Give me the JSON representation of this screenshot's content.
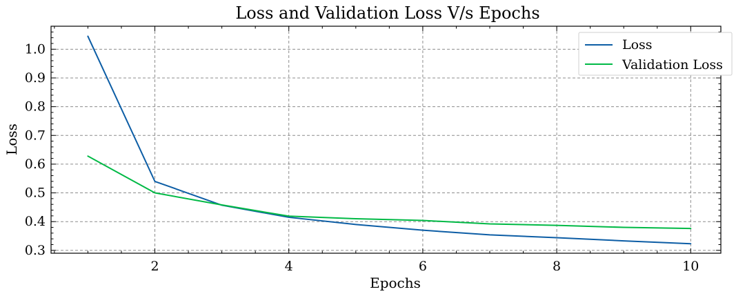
{
  "chart_data": {
    "type": "line",
    "title": "Loss and Validation Loss V/s Epochs",
    "xlabel": "Epochs",
    "ylabel": "Loss",
    "xlim": [
      0.45,
      10.45
    ],
    "ylim": [
      0.29,
      1.08
    ],
    "xticks": [
      2,
      4,
      6,
      8,
      10
    ],
    "yticks": [
      0.3,
      0.4,
      0.5,
      0.6,
      0.7,
      0.8,
      0.9,
      1.0
    ],
    "ytick_labels": [
      "0.3",
      "0.4",
      "0.5",
      "0.6",
      "0.7",
      "0.8",
      "0.9",
      "1.0"
    ],
    "grid": true,
    "legend_position": "top-right",
    "x": [
      1,
      2,
      3,
      4,
      5,
      6,
      7,
      8,
      9,
      10
    ],
    "series": [
      {
        "name": "Loss",
        "color": "#0c5da5",
        "values": [
          1.045,
          0.54,
          0.457,
          0.415,
          0.39,
          0.37,
          0.354,
          0.344,
          0.333,
          0.323
        ]
      },
      {
        "name": "Validation Loss",
        "color": "#00b945",
        "values": [
          0.628,
          0.5,
          0.458,
          0.419,
          0.41,
          0.404,
          0.392,
          0.387,
          0.38,
          0.376
        ]
      }
    ]
  }
}
